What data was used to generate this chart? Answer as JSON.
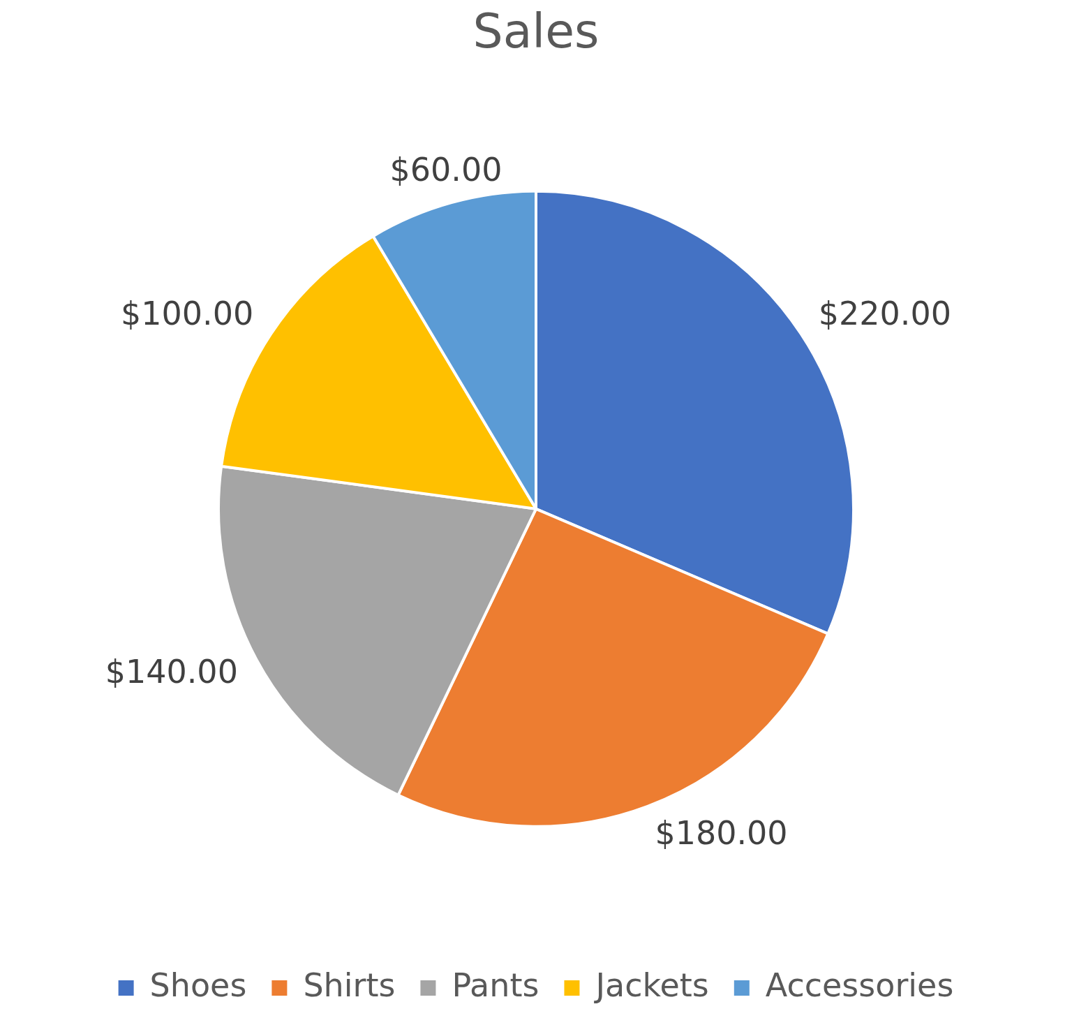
{
  "chart_data": {
    "type": "pie",
    "title": "Sales",
    "categories": [
      "Shoes",
      "Shirts",
      "Pants",
      "Jackets",
      "Accessories"
    ],
    "values": [
      220,
      180,
      140,
      100,
      60
    ],
    "value_labels": [
      "$220.00",
      "$180.00",
      "$140.00",
      "$100.00",
      "$60.00"
    ],
    "colors": [
      "#4472c4",
      "#ed7d31",
      "#a5a5a5",
      "#ffc000",
      "#5b9bd5"
    ],
    "legend": "bottom"
  }
}
